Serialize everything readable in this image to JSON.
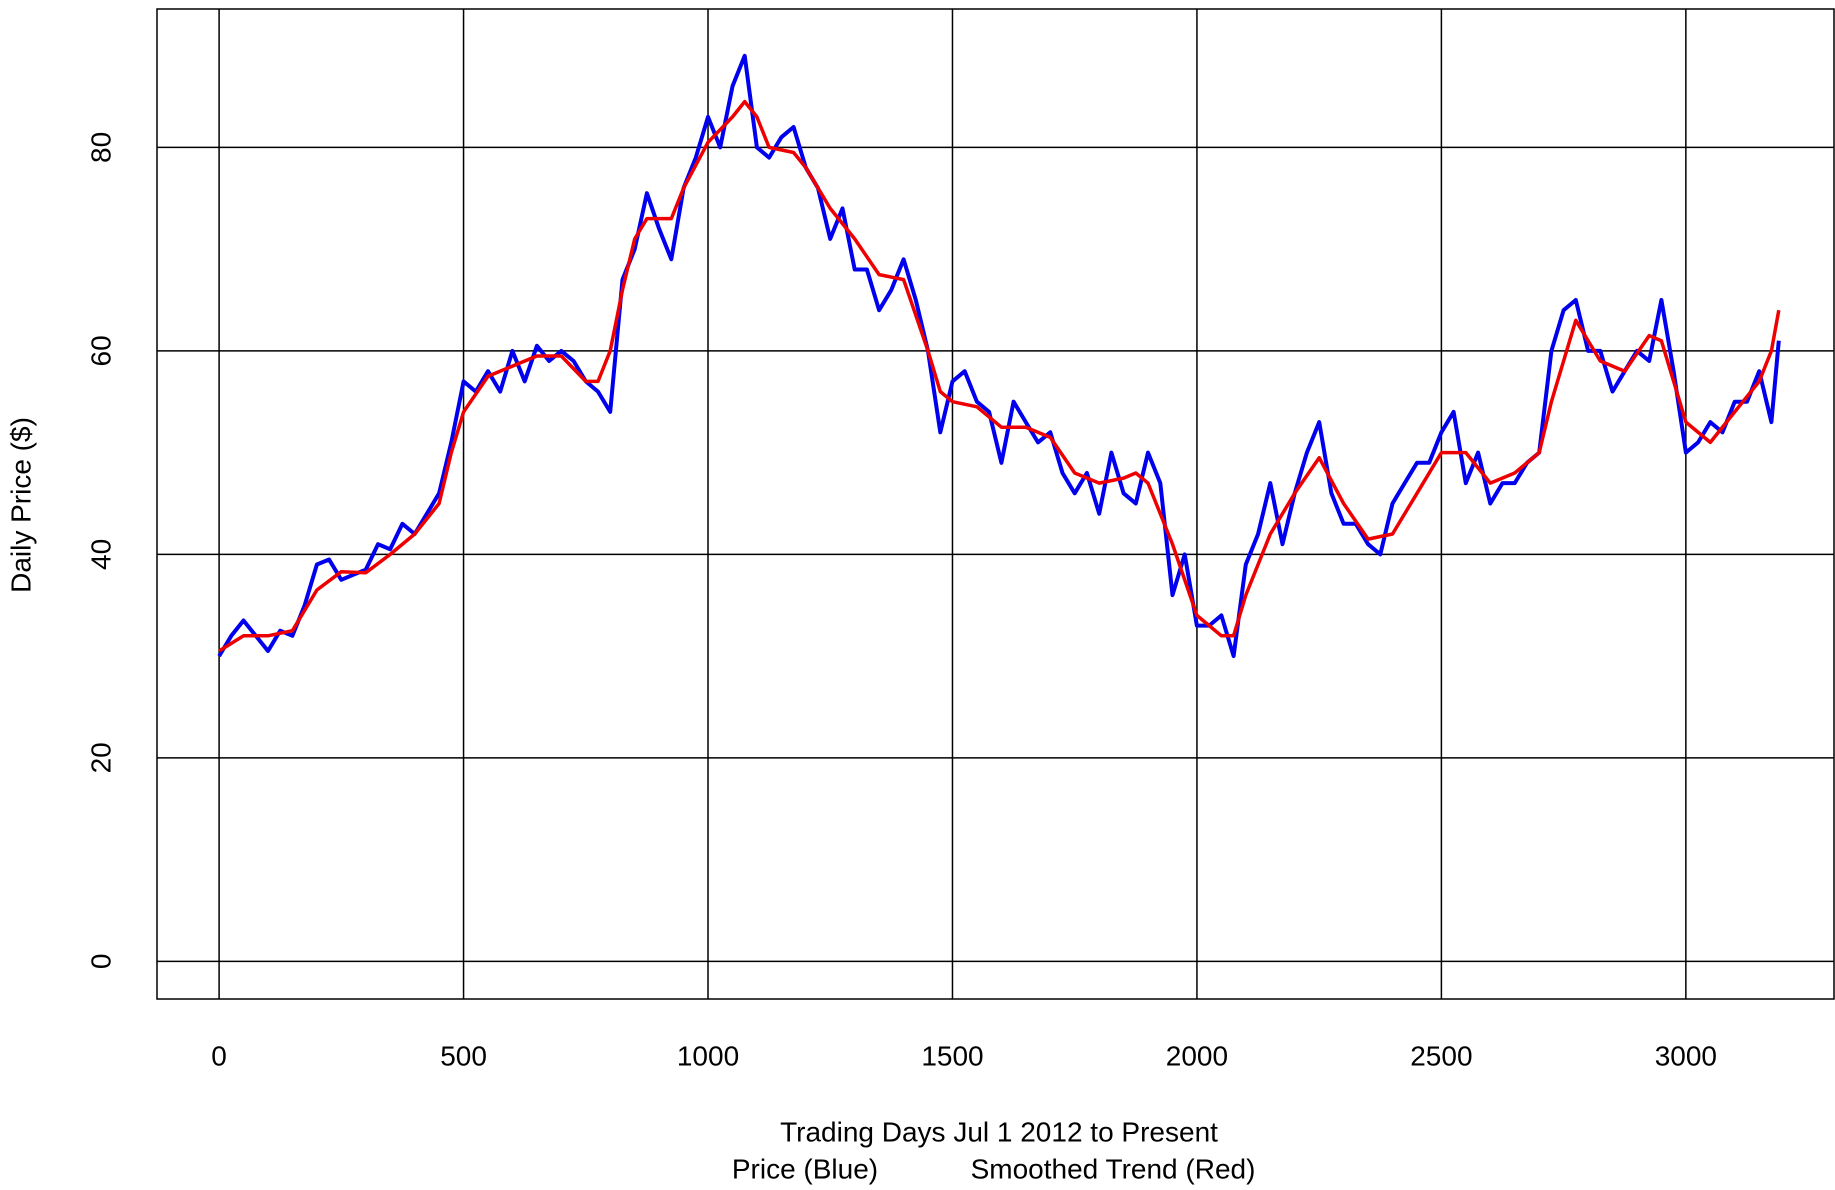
{
  "chart_data": {
    "type": "line",
    "xlabel": "Trading Days Jul 1 2012 to Present",
    "ylabel": "Daily Price ($)",
    "xlim": [
      -127,
      3303
    ],
    "ylim": [
      -3.7,
      93.6
    ],
    "xticks": [
      0,
      500,
      1000,
      1500,
      2000,
      2500,
      3000
    ],
    "yticks": [
      0,
      20,
      40,
      60,
      80
    ],
    "grid": true,
    "series": [
      {
        "name": "Price (Blue)",
        "color": "#0000ee",
        "width": 4,
        "x": [
          0,
          25,
          50,
          75,
          100,
          125,
          150,
          175,
          200,
          225,
          250,
          275,
          300,
          325,
          350,
          375,
          400,
          425,
          450,
          475,
          500,
          525,
          550,
          575,
          600,
          625,
          650,
          675,
          700,
          725,
          750,
          775,
          800,
          825,
          850,
          875,
          900,
          925,
          950,
          975,
          1000,
          1025,
          1050,
          1075,
          1100,
          1125,
          1150,
          1175,
          1200,
          1225,
          1250,
          1275,
          1300,
          1325,
          1350,
          1375,
          1400,
          1425,
          1450,
          1475,
          1500,
          1525,
          1550,
          1575,
          1600,
          1625,
          1650,
          1675,
          1700,
          1725,
          1750,
          1775,
          1800,
          1825,
          1850,
          1875,
          1900,
          1925,
          1950,
          1975,
          2000,
          2025,
          2050,
          2075,
          2100,
          2125,
          2150,
          2175,
          2200,
          2225,
          2250,
          2275,
          2300,
          2325,
          2350,
          2375,
          2400,
          2425,
          2450,
          2475,
          2500,
          2525,
          2550,
          2575,
          2600,
          2625,
          2650,
          2675,
          2700,
          2725,
          2750,
          2775,
          2800,
          2825,
          2850,
          2875,
          2900,
          2925,
          2950,
          2975,
          3000,
          3025,
          3050,
          3075,
          3100,
          3125,
          3150,
          3175,
          3190
        ],
        "values": [
          30,
          32,
          33.5,
          32,
          30.5,
          32.5,
          32,
          35,
          39,
          39.5,
          37.5,
          38,
          38.5,
          41,
          40.5,
          43,
          42,
          44,
          46,
          51,
          57,
          56,
          58,
          56,
          60,
          57,
          60.5,
          59,
          60,
          59,
          57,
          56,
          54,
          67,
          70,
          75.5,
          72,
          69,
          76,
          79,
          83,
          80,
          86,
          89,
          80,
          79,
          81,
          82,
          78,
          76,
          71,
          74,
          68,
          68,
          64,
          66,
          69,
          65,
          60,
          52,
          57,
          58,
          55,
          54,
          49,
          55,
          53,
          51,
          52,
          48,
          46,
          48,
          44,
          50,
          46,
          45,
          50,
          47,
          36,
          40,
          33,
          33,
          34,
          30,
          39,
          42,
          47,
          41,
          46,
          50,
          53,
          46,
          43,
          43,
          41,
          40,
          45,
          47,
          49,
          49,
          52,
          54,
          47,
          50,
          45,
          47,
          47,
          49,
          50,
          60,
          64,
          65,
          60,
          60,
          56,
          58,
          60,
          59,
          65,
          58,
          50,
          51,
          53,
          52,
          55,
          55,
          58,
          53,
          61
        ]
      },
      {
        "name": "Smoothed Trend (Red)",
        "color": "#ee0000",
        "width": 3.5,
        "x": [
          0,
          50,
          100,
          150,
          200,
          250,
          300,
          350,
          400,
          450,
          475,
          500,
          550,
          600,
          650,
          700,
          750,
          775,
          800,
          825,
          850,
          875,
          925,
          950,
          1000,
          1050,
          1075,
          1100,
          1125,
          1175,
          1200,
          1250,
          1300,
          1350,
          1400,
          1450,
          1475,
          1500,
          1550,
          1600,
          1650,
          1700,
          1750,
          1800,
          1850,
          1875,
          1900,
          1950,
          2000,
          2050,
          2075,
          2100,
          2150,
          2200,
          2250,
          2300,
          2350,
          2400,
          2450,
          2500,
          2550,
          2600,
          2650,
          2700,
          2725,
          2775,
          2825,
          2875,
          2925,
          2950,
          3000,
          3050,
          3100,
          3150,
          3175,
          3190
        ],
        "values": [
          30.5,
          32,
          32,
          32.5,
          36.5,
          38.3,
          38.2,
          40,
          42,
          45,
          50,
          54,
          57.5,
          58.5,
          59.5,
          59.5,
          57,
          57,
          60,
          66,
          71,
          73,
          73,
          76,
          80.5,
          83,
          84.5,
          83,
          80,
          79.5,
          78,
          74,
          71,
          67.5,
          67,
          60,
          56,
          55,
          54.5,
          52.5,
          52.5,
          51.5,
          48,
          47,
          47.5,
          48,
          47,
          41,
          34,
          32,
          32,
          36,
          42,
          46,
          49.5,
          45,
          41.5,
          42,
          46,
          50,
          50,
          47,
          48,
          50,
          55,
          63,
          59,
          58,
          61.5,
          61,
          53,
          51,
          54,
          57,
          60,
          64
        ]
      }
    ]
  }
}
